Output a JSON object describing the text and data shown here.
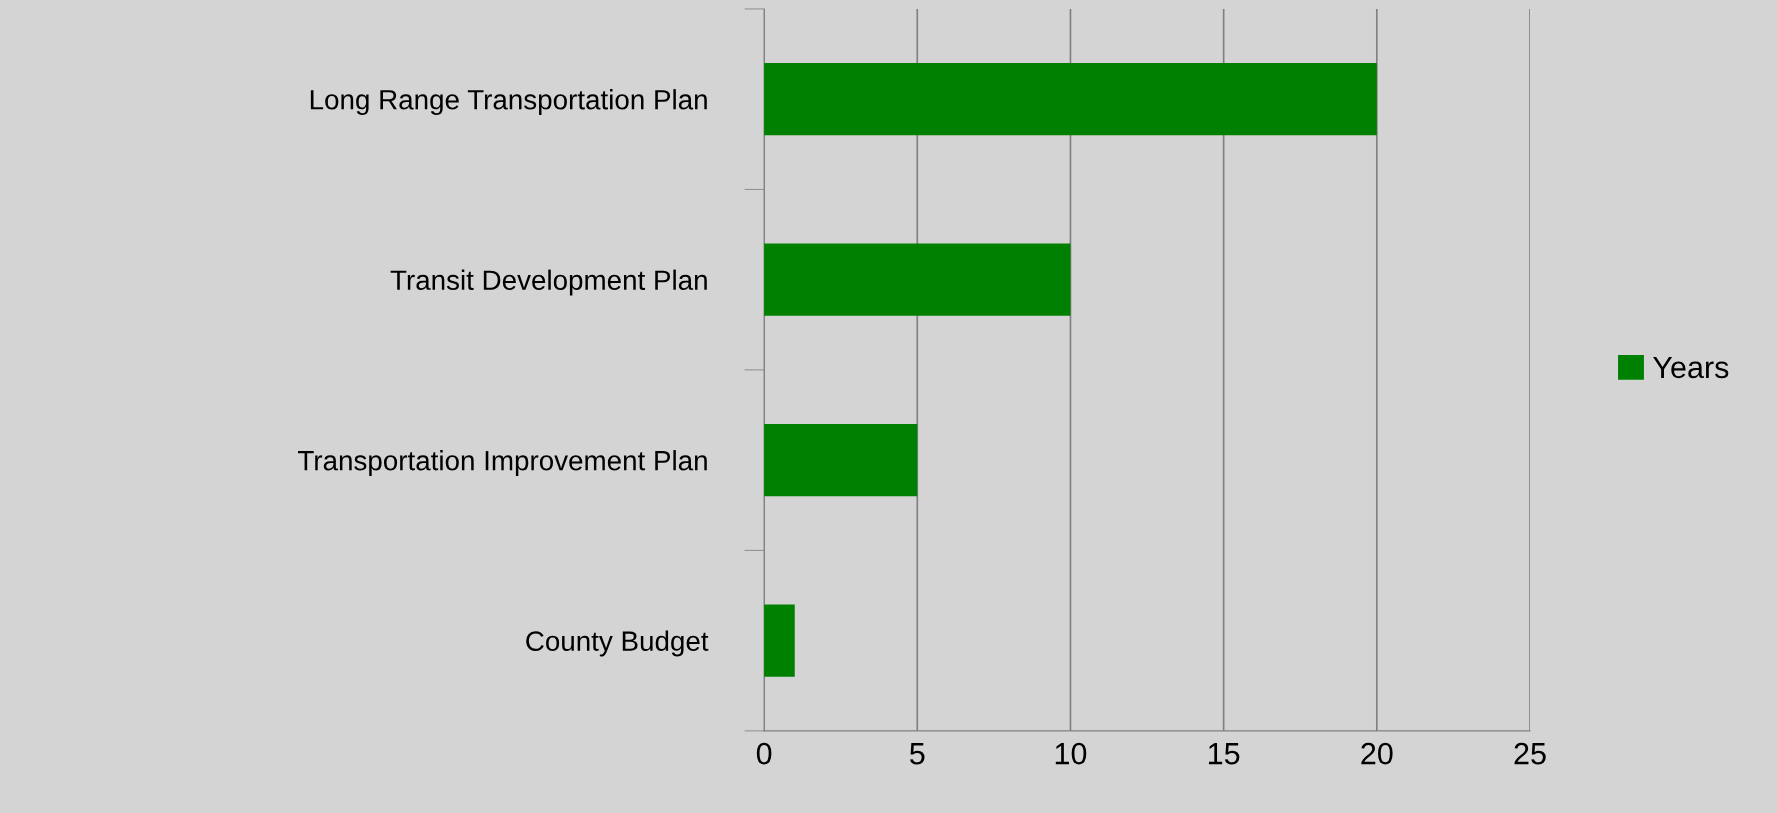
{
  "chart_data": {
    "type": "bar",
    "orientation": "horizontal",
    "categories": [
      "Long Range Transportation Plan",
      "Transit Development Plan",
      "Transportation Improvement Plan",
      "County Budget"
    ],
    "series": [
      {
        "name": "Years",
        "color": "#008000",
        "values": [
          20,
          10,
          5,
          1
        ]
      }
    ],
    "xlim": [
      0,
      25
    ],
    "xticks": [
      0,
      5,
      10,
      15,
      20,
      25
    ],
    "grid": "x",
    "legend": "right"
  }
}
